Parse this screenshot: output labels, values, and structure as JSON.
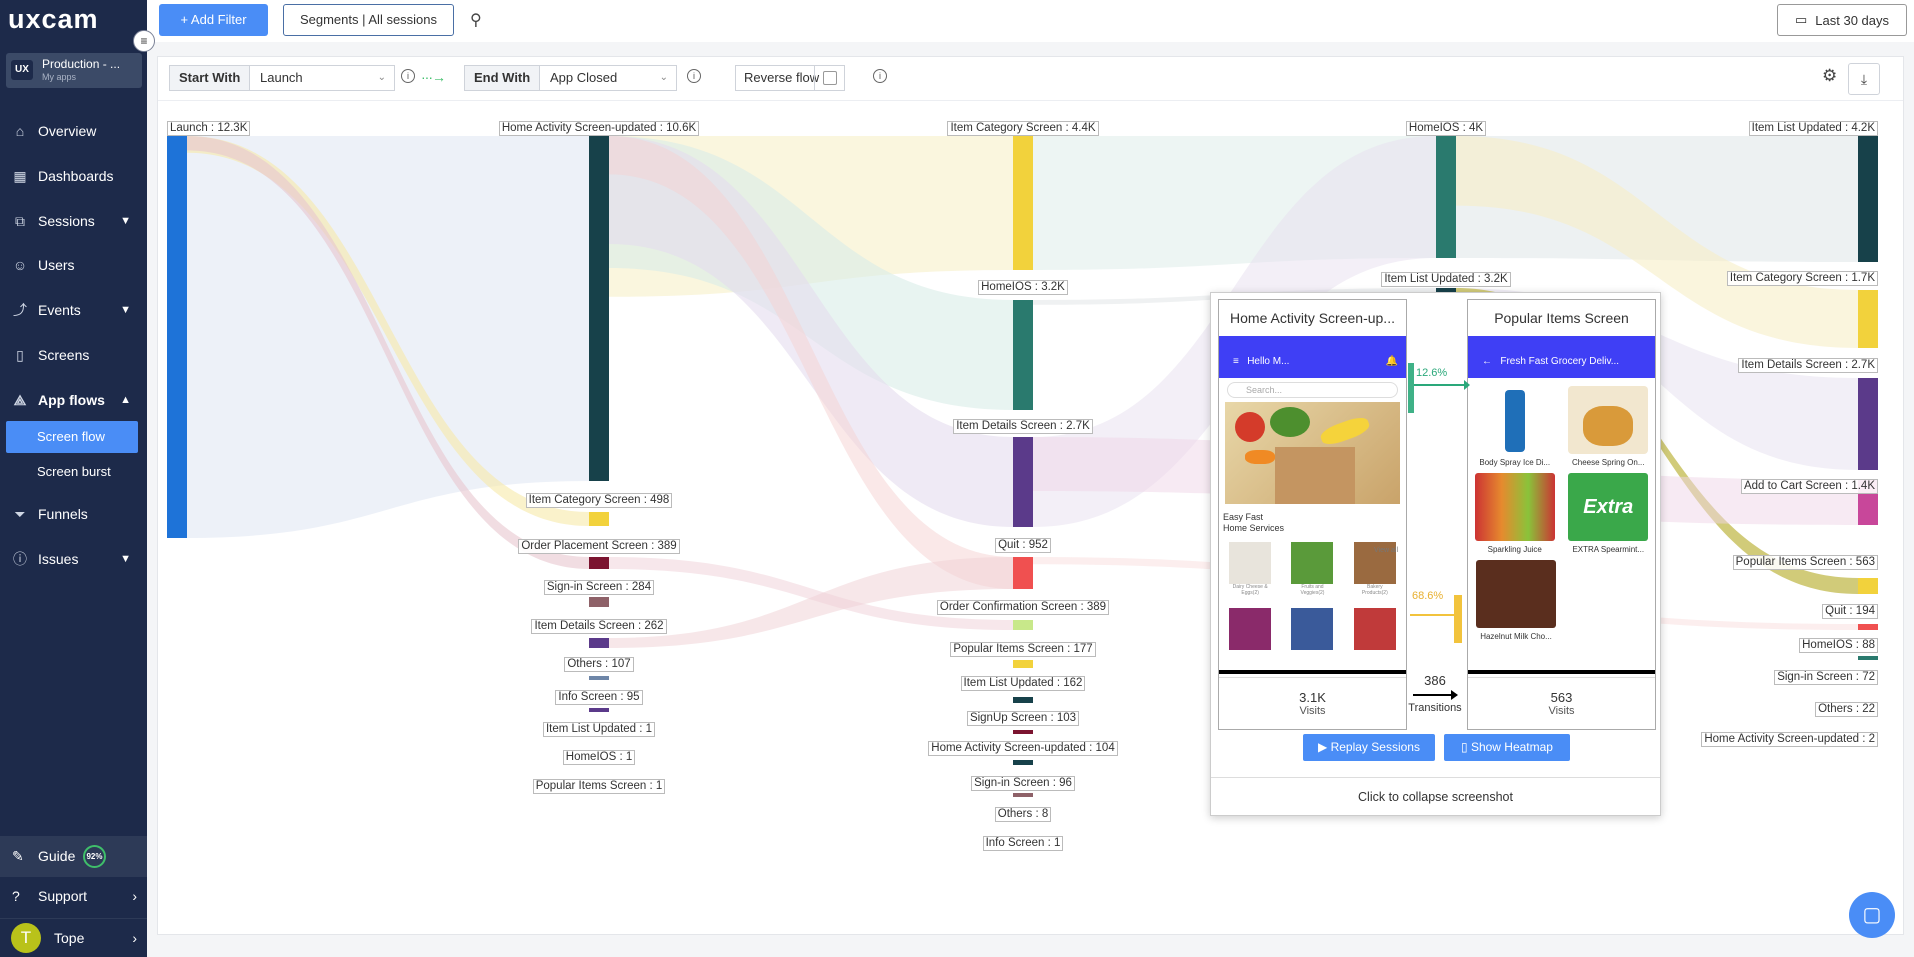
{
  "app": {
    "logo": "uxcam",
    "org_name": "Production - ...",
    "org_sub": "My apps",
    "org_badge": "UX"
  },
  "nav": {
    "items": [
      {
        "label": "Overview",
        "icon": "home-icon",
        "glyph": "⌂"
      },
      {
        "label": "Dashboards",
        "icon": "dashboard-icon",
        "glyph": "▦"
      },
      {
        "label": "Sessions",
        "icon": "sessions-icon",
        "glyph": "⧉"
      },
      {
        "label": "Users",
        "icon": "user-icon",
        "glyph": "☺"
      },
      {
        "label": "Events",
        "icon": "events-icon",
        "glyph": "⤴"
      },
      {
        "label": "Screens",
        "icon": "screens-icon",
        "glyph": "▯"
      },
      {
        "label": "App flows",
        "icon": "app-flows-icon",
        "glyph": "⟁"
      },
      {
        "label": "Funnels",
        "icon": "funnel-icon",
        "glyph": "⏷"
      },
      {
        "label": "Issues",
        "icon": "issues-icon",
        "glyph": "ⓘ"
      }
    ],
    "sub_items": [
      "Screen flow",
      "Screen burst"
    ],
    "guide": "Guide",
    "guide_pct": "92%",
    "support": "Support",
    "user_initial": "T",
    "user_name": "Tope"
  },
  "topbar": {
    "add_filter": "+ Add Filter",
    "segments": "Segments | All sessions",
    "date_range": "Last 30 days"
  },
  "controls": {
    "start_with_label": "Start With",
    "start_with_value": "Launch",
    "end_with_label": "End With",
    "end_with_value": "App Closed",
    "reverse_flow": "Reverse flow"
  },
  "sankey": {
    "columns": [
      [
        {
          "label": "Launch : 12.3K",
          "color": "#1e73d8"
        }
      ],
      [
        {
          "label": "Home Activity Screen-updated : 10.6K",
          "color": "#17414a"
        },
        {
          "label": "Item Category Screen : 498",
          "color": "#f2d23c"
        },
        {
          "label": "Order Placement Screen : 389",
          "color": "#7b1430"
        },
        {
          "label": "Sign-in Screen : 284",
          "color": "#8e6168"
        },
        {
          "label": "Item Details Screen : 262",
          "color": "#5b3a8a"
        },
        {
          "label": "Others : 107",
          "color": "#6e86a8"
        },
        {
          "label": "Info Screen : 95",
          "color": "#5b3a8a"
        },
        {
          "label": "Item List Updated : 1",
          "color": "#17414a"
        },
        {
          "label": "HomeIOS : 1",
          "color": "#2a7a6e"
        },
        {
          "label": "Popular Items Screen : 1",
          "color": "#f2d23c"
        }
      ],
      [
        {
          "label": "Item Category Screen : 4.4K",
          "color": "#f2d23c"
        },
        {
          "label": "HomeIOS : 3.2K",
          "color": "#2a7a6e"
        },
        {
          "label": "Item Details Screen : 2.7K",
          "color": "#5b3a8a"
        },
        {
          "label": "Quit : 952",
          "color": "#f05050"
        },
        {
          "label": "Order Confirmation Screen : 389",
          "color": "#c8e88a"
        },
        {
          "label": "Popular Items Screen : 177",
          "color": "#f2d23c"
        },
        {
          "label": "Item List Updated : 162",
          "color": "#17414a"
        },
        {
          "label": "SignUp Screen : 103",
          "color": "#7b1430"
        },
        {
          "label": "Home Activity Screen-updated : 104",
          "color": "#17414a"
        },
        {
          "label": "Sign-in Screen : 96",
          "color": "#8e6168"
        },
        {
          "label": "Others : 8",
          "color": "#6e86a8"
        },
        {
          "label": "Info Screen : 1",
          "color": "#5b3a8a"
        }
      ],
      [
        {
          "label": "HomeIOS : 4K",
          "color": "#2a7a6e"
        },
        {
          "label": "Item List Updated : 3.2K",
          "color": "#17414a"
        }
      ],
      [
        {
          "label": "Item List Updated : 4.2K",
          "color": "#17414a"
        },
        {
          "label": "Item Category Screen : 1.7K",
          "color": "#f2d23c"
        },
        {
          "label": "Item Details Screen : 2.7K",
          "color": "#5b3a8a"
        },
        {
          "label": "Add to Cart Screen : 1.4K",
          "color": "#c8479a"
        },
        {
          "label": "Popular Items Screen : 563",
          "color": "#f2d23c"
        },
        {
          "label": "Quit : 194",
          "color": "#f05050"
        },
        {
          "label": "HomeIOS : 88",
          "color": "#2a7a6e"
        },
        {
          "label": "Sign-in Screen : 72",
          "color": "#8e6168"
        },
        {
          "label": "Others : 22",
          "color": "#6e86a8"
        },
        {
          "label": "Home Activity Screen-updated : 2",
          "color": "#17414a"
        }
      ]
    ]
  },
  "popup": {
    "left": {
      "title": "Home Activity Screen-up...",
      "header": "Hello M...",
      "search": "Search...",
      "banner_title": "Easy Fast\nHome Services",
      "view_all": "View all",
      "cats": [
        "Dairy Cheese & Eggs(2)",
        "Fruits and Veggies(2)",
        "Bakery Products(2)"
      ],
      "count": "3.1K",
      "count_label": "Visits"
    },
    "right": {
      "title": "Popular Items Screen",
      "header": "Fresh Fast Grocery Deliv...",
      "products": [
        "Body Spray Ice Di...",
        "Cheese Spring On...",
        "Sparkling Juice",
        "EXTRA Spearmint...",
        "Hazelnut Milk Cho..."
      ],
      "count": "563",
      "count_label": "Visits"
    },
    "pct_top": "12.6%",
    "pct_mid": "68.6%",
    "transitions_num": "386",
    "transitions_label": "Transitions",
    "replay": "▶ Replay Sessions",
    "heatmap": "▯ Show Heatmap",
    "collapse": "Click to collapse screenshot"
  }
}
